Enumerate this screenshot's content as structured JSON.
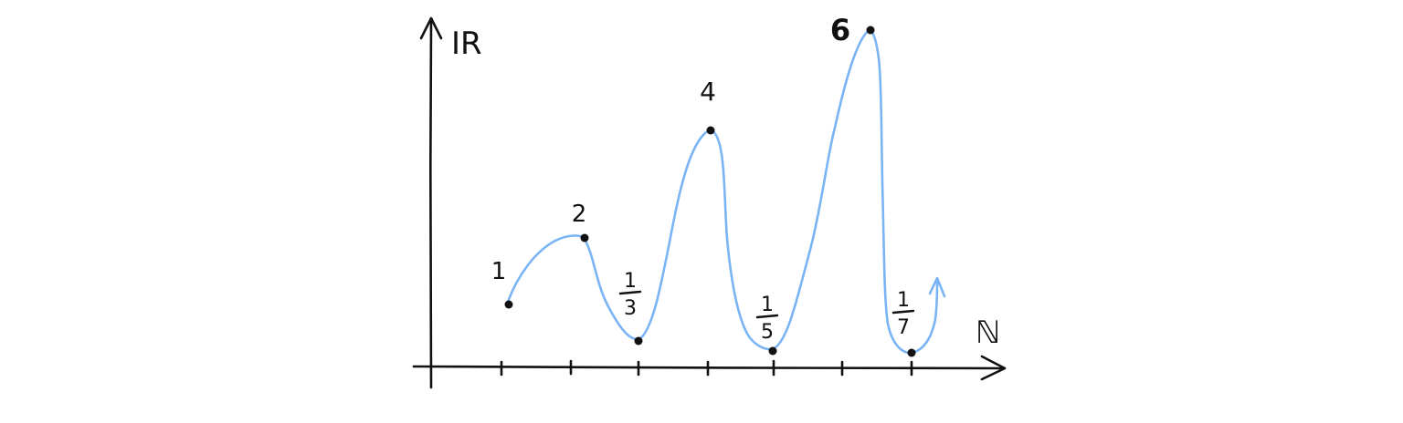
{
  "diagram": {
    "y_axis_label": "IR",
    "x_axis_label": "ℕ",
    "points": [
      {
        "n": 1,
        "value_label": "1"
      },
      {
        "n": 2,
        "value_label": "2"
      },
      {
        "n": 3,
        "value_label": "1/3",
        "numerator": "1",
        "denominator": "3"
      },
      {
        "n": 4,
        "value_label": "4"
      },
      {
        "n": 5,
        "value_label": "1/5",
        "numerator": "1",
        "denominator": "5"
      },
      {
        "n": 6,
        "value_label": "6"
      },
      {
        "n": 7,
        "value_label": "1/7",
        "numerator": "1",
        "denominator": "7"
      }
    ],
    "tick_count": 7,
    "colors": {
      "axis": "#111111",
      "curve": "#7ab4f5",
      "point": "#111111"
    }
  }
}
